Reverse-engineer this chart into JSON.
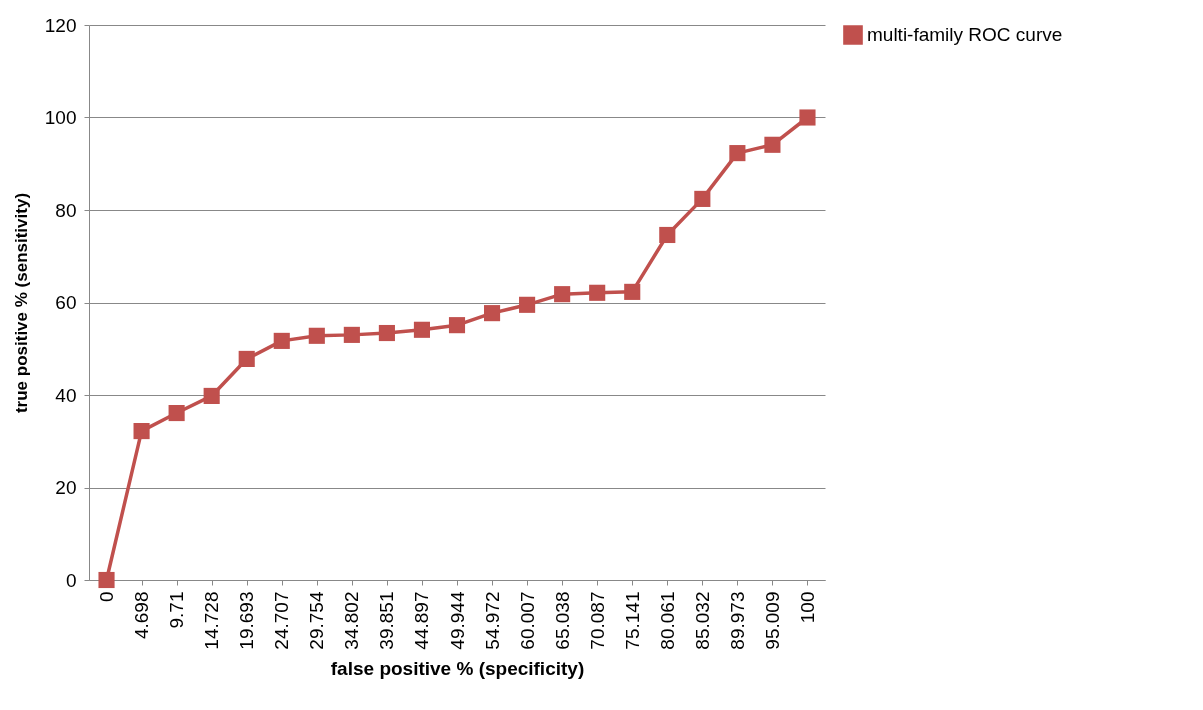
{
  "chart_data": {
    "type": "line",
    "xlabel": "false positive % (specificity)",
    "ylabel": "true positive % (sensitivity)",
    "categories": [
      "0",
      "4.698",
      "9.71",
      "14.728",
      "19.693",
      "24.707",
      "29.754",
      "34.802",
      "39.851",
      "44.897",
      "49.944",
      "54.972",
      "60.007",
      "65.038",
      "70.087",
      "75.141",
      "80.061",
      "85.032",
      "89.973",
      "95.009",
      "100"
    ],
    "series": [
      {
        "name": "multi-family ROC curve",
        "color": "#c0504d",
        "values": [
          0,
          32.2,
          36.1,
          39.8,
          47.8,
          51.7,
          52.8,
          53,
          53.4,
          54.1,
          55.1,
          57.7,
          59.5,
          61.8,
          62.1,
          62.3,
          74.6,
          82.4,
          92.3,
          94.1,
          100
        ]
      }
    ],
    "ylim": [
      0,
      120
    ],
    "yticks": [
      0,
      20,
      40,
      60,
      80,
      100,
      120
    ],
    "grid": "y",
    "legend": "right",
    "marker": "square",
    "line_style": "solid"
  }
}
